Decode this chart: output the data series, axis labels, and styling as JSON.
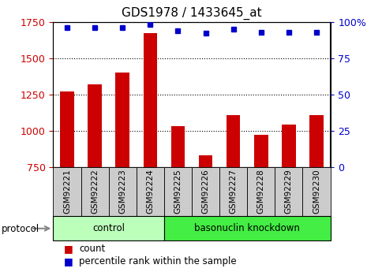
{
  "title": "GDS1978 / 1433645_at",
  "samples": [
    "GSM92221",
    "GSM92222",
    "GSM92223",
    "GSM92224",
    "GSM92225",
    "GSM92226",
    "GSM92227",
    "GSM92228",
    "GSM92229",
    "GSM92230"
  ],
  "counts": [
    1270,
    1320,
    1400,
    1670,
    1035,
    830,
    1110,
    975,
    1045,
    1110
  ],
  "percentile_ranks": [
    96,
    96,
    96,
    98,
    94,
    92,
    95,
    93,
    93,
    93
  ],
  "ylim_left": [
    750,
    1750
  ],
  "ylim_right": [
    0,
    100
  ],
  "yticks_left": [
    750,
    1000,
    1250,
    1500,
    1750
  ],
  "yticks_right": [
    0,
    25,
    50,
    75,
    100
  ],
  "bar_color": "#cc0000",
  "dot_color": "#0000cc",
  "groups": [
    {
      "label": "control",
      "indices": [
        0,
        1,
        2,
        3
      ],
      "color": "#bbffbb"
    },
    {
      "label": "basonuclin knockdown",
      "indices": [
        4,
        5,
        6,
        7,
        8,
        9
      ],
      "color": "#44ee44"
    }
  ],
  "protocol_label": "protocol",
  "legend_count_label": "count",
  "legend_pct_label": "percentile rank within the sample",
  "tick_label_color_left": "#cc0000",
  "tick_label_color_right": "#0000cc",
  "bar_width": 0.5,
  "xlabel_bg": "#cccccc",
  "xlabel_fontsize": 7.5,
  "title_fontsize": 11
}
